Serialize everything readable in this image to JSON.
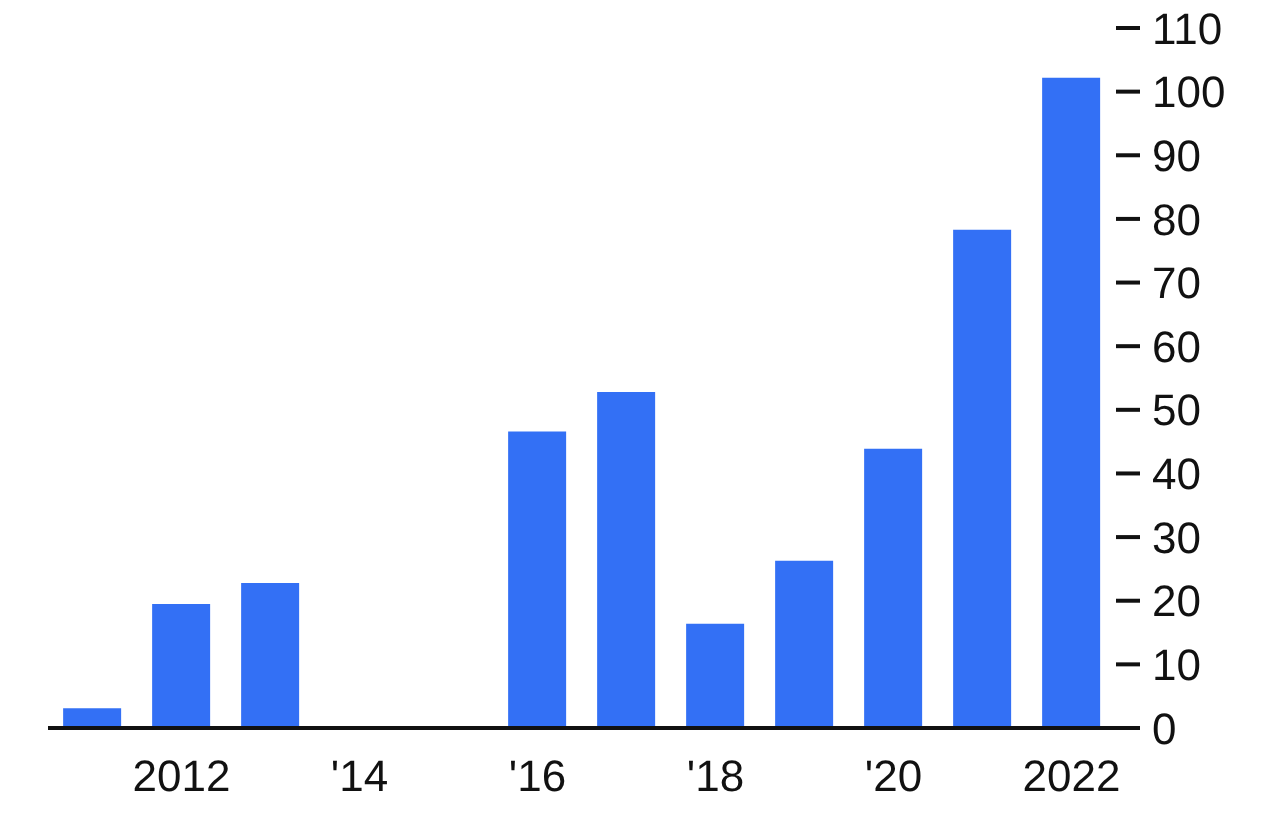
{
  "chart_data": {
    "type": "bar",
    "categories": [
      null,
      "2012",
      null,
      "'14",
      null,
      "'16",
      null,
      "'18",
      null,
      "'20",
      null,
      "2022"
    ],
    "values": [
      3.1,
      19.5,
      22.8,
      0,
      0,
      46.6,
      52.8,
      16.4,
      26.3,
      43.9,
      78.3,
      102.2
    ],
    "color": "#3370f5",
    "ylim": [
      0,
      110
    ],
    "yticks": [
      0,
      10,
      20,
      30,
      40,
      50,
      60,
      70,
      80,
      90,
      100,
      110
    ],
    "grid": false
  }
}
